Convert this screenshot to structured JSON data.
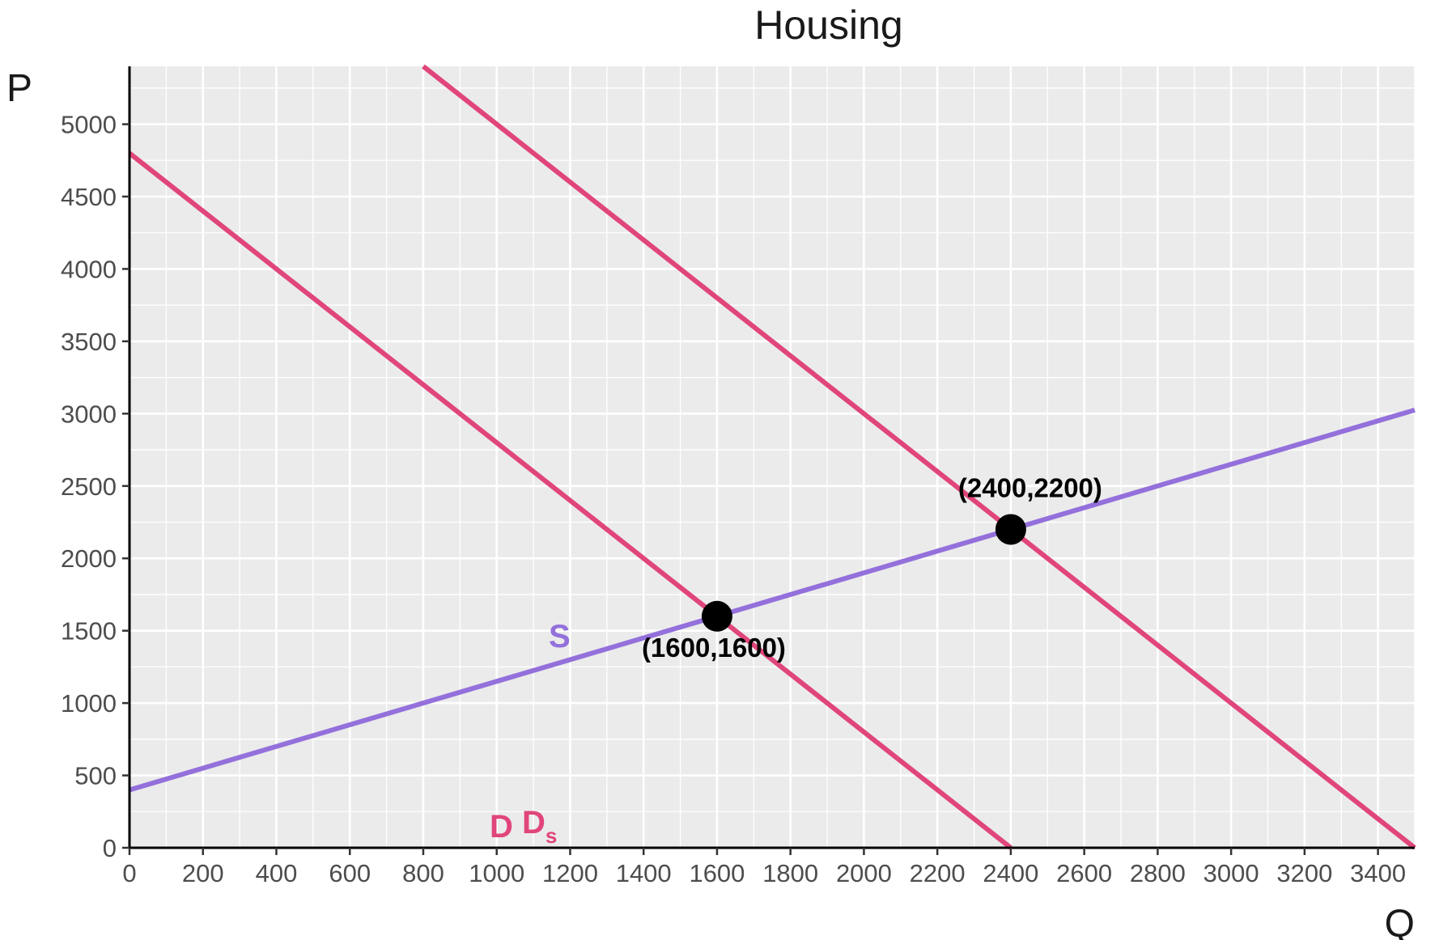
{
  "chart_data": {
    "type": "line",
    "title": "Housing",
    "xlabel": "Q",
    "ylabel": "P",
    "xlim": [
      0,
      3500
    ],
    "ylim": [
      0,
      5400
    ],
    "x_ticks": [
      0,
      200,
      400,
      600,
      800,
      1000,
      1200,
      1400,
      1600,
      1800,
      2000,
      2200,
      2400,
      2600,
      2800,
      3000,
      3200,
      3400
    ],
    "y_ticks": [
      0,
      500,
      1000,
      1500,
      2000,
      2500,
      3000,
      3500,
      4000,
      4500,
      5000
    ],
    "x_tick_labels": [
      "0",
      "200",
      "400",
      "600",
      "800",
      "1000",
      "1200",
      "1400",
      "1600",
      "1800",
      "2000",
      "2200",
      "2400",
      "2600",
      "2800",
      "3000",
      "3200",
      "3400"
    ],
    "y_tick_labels": [
      "0",
      "500",
      "1000",
      "1500",
      "2000",
      "2500",
      "3000",
      "3500",
      "4000",
      "4500",
      "5000"
    ],
    "grid": true,
    "series": [
      {
        "name": "D",
        "label": "D",
        "subscript": "",
        "color": "#e0457b",
        "x": [
          0,
          2400
        ],
        "y": [
          4800,
          0
        ]
      },
      {
        "name": "Ds",
        "label": "D",
        "subscript": "s",
        "color": "#e0457b",
        "x": [
          800,
          3500
        ],
        "y": [
          5400,
          0
        ]
      },
      {
        "name": "S",
        "label": "S",
        "subscript": "",
        "color": "#9370db",
        "x": [
          0,
          3500
        ],
        "y": [
          400,
          3025
        ]
      }
    ],
    "points": [
      {
        "x": 1600,
        "y": 1600,
        "label": "(1600,1600)"
      },
      {
        "x": 2400,
        "y": 2200,
        "label": "(2400,2200)"
      }
    ],
    "colors": {
      "panel": "#ebebeb",
      "grid": "#ffffff",
      "axis": "#000000",
      "point": "#000000"
    }
  }
}
